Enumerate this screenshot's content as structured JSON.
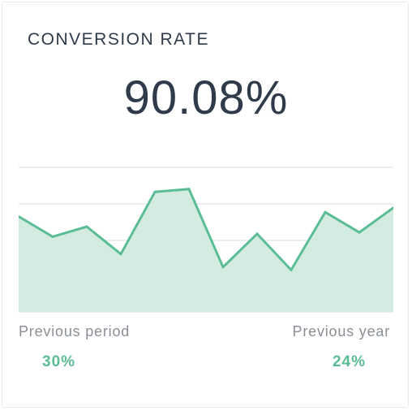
{
  "widget": {
    "title": "CONVERSION RATE",
    "value": "90.08%"
  },
  "comparisons": {
    "previous_period": {
      "label": "Previous period",
      "value": "30%"
    },
    "previous_year": {
      "label": "Previous year",
      "value": "24%"
    }
  },
  "colors": {
    "line": "#5bbd95",
    "fill": "#d4ebe2",
    "grid": "#d9dcdf",
    "text": "#2f3a4a"
  },
  "chart_data": {
    "type": "area",
    "series": [
      {
        "values": [
          0.66,
          0.52,
          0.59,
          0.4,
          0.83,
          0.85,
          0.31,
          0.54,
          0.29,
          0.69,
          0.55,
          0.72
        ]
      }
    ],
    "ylim": [
      0,
      1
    ],
    "grid": true,
    "xlabel": "",
    "ylabel": ""
  }
}
